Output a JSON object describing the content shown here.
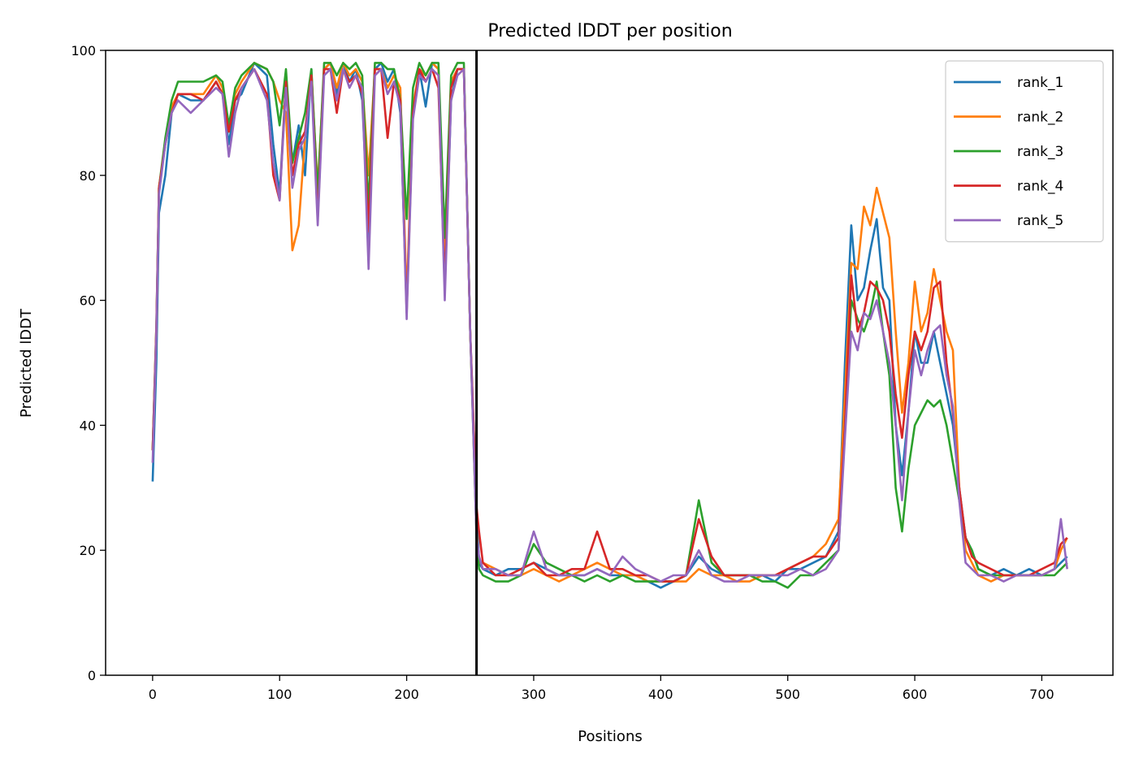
{
  "chart_data": {
    "type": "line",
    "title": "Predicted lDDT per position",
    "xlabel": "Positions",
    "ylabel": "Predicted lDDT",
    "xlim": [
      -37,
      756
    ],
    "ylim": [
      0,
      100
    ],
    "xticks": [
      0,
      100,
      200,
      300,
      400,
      500,
      600,
      700
    ],
    "yticks": [
      0,
      20,
      40,
      60,
      80,
      100
    ],
    "vline_x": 255,
    "legend_position": "top-right",
    "grid": false,
    "series": [
      {
        "name": "rank_1",
        "color": "#1f77b4",
        "x": [
          0,
          3,
          5,
          10,
          15,
          20,
          30,
          40,
          50,
          55,
          60,
          65,
          70,
          80,
          90,
          95,
          100,
          105,
          110,
          115,
          120,
          125,
          130,
          135,
          140,
          145,
          150,
          155,
          160,
          165,
          170,
          175,
          180,
          185,
          190,
          195,
          200,
          205,
          210,
          215,
          220,
          225,
          230,
          235,
          240,
          245,
          250,
          255,
          257,
          260,
          270,
          280,
          290,
          300,
          310,
          320,
          330,
          340,
          350,
          360,
          370,
          380,
          390,
          400,
          410,
          420,
          430,
          440,
          450,
          460,
          470,
          480,
          490,
          500,
          510,
          520,
          530,
          540,
          545,
          550,
          555,
          560,
          565,
          570,
          575,
          580,
          585,
          590,
          595,
          600,
          605,
          610,
          615,
          620,
          625,
          630,
          635,
          640,
          645,
          650,
          660,
          670,
          680,
          690,
          700,
          710,
          715,
          720
        ],
        "y": [
          31,
          50,
          74,
          80,
          90,
          93,
          92,
          92,
          95,
          93,
          85,
          92,
          93,
          98,
          96,
          85,
          77,
          95,
          82,
          88,
          80,
          97,
          75,
          97,
          98,
          93,
          98,
          95,
          97,
          92,
          70,
          97,
          98,
          95,
          97,
          90,
          59,
          90,
          97,
          91,
          98,
          97,
          62,
          92,
          97,
          97,
          55,
          27,
          18,
          17,
          16,
          17,
          17,
          18,
          17,
          16,
          16,
          16,
          17,
          16,
          16,
          16,
          15,
          14,
          15,
          16,
          19,
          17,
          16,
          16,
          16,
          16,
          15,
          17,
          17,
          18,
          19,
          23,
          50,
          72,
          60,
          62,
          68,
          73,
          62,
          60,
          40,
          32,
          42,
          55,
          50,
          50,
          55,
          50,
          45,
          40,
          30,
          22,
          20,
          17,
          16,
          17,
          16,
          17,
          16,
          17,
          18,
          19
        ]
      },
      {
        "name": "rank_2",
        "color": "#ff7f0e",
        "x": [
          0,
          3,
          5,
          10,
          15,
          20,
          30,
          40,
          50,
          55,
          60,
          65,
          70,
          80,
          90,
          95,
          100,
          105,
          110,
          115,
          120,
          125,
          130,
          135,
          140,
          145,
          150,
          155,
          160,
          165,
          170,
          175,
          180,
          185,
          190,
          195,
          200,
          205,
          210,
          215,
          220,
          225,
          230,
          235,
          240,
          245,
          250,
          255,
          257,
          260,
          270,
          280,
          290,
          300,
          310,
          320,
          330,
          340,
          350,
          360,
          370,
          380,
          390,
          400,
          410,
          420,
          430,
          440,
          450,
          460,
          470,
          480,
          490,
          500,
          510,
          520,
          530,
          540,
          545,
          550,
          555,
          560,
          565,
          570,
          575,
          580,
          585,
          590,
          595,
          600,
          605,
          610,
          615,
          620,
          625,
          630,
          635,
          640,
          645,
          650,
          660,
          670,
          680,
          690,
          700,
          710,
          715,
          720
        ],
        "y": [
          36,
          55,
          78,
          85,
          91,
          93,
          93,
          93,
          96,
          94,
          87,
          93,
          95,
          98,
          97,
          95,
          92,
          90,
          68,
          72,
          86,
          96,
          78,
          97,
          98,
          94,
          98,
          96,
          97,
          95,
          80,
          97,
          97,
          94,
          96,
          94,
          60,
          91,
          97,
          96,
          98,
          97,
          68,
          95,
          97,
          97,
          55,
          23,
          18,
          18,
          17,
          16,
          16,
          17,
          16,
          15,
          16,
          17,
          18,
          17,
          16,
          16,
          15,
          15,
          15,
          15,
          17,
          16,
          16,
          15,
          15,
          16,
          16,
          17,
          18,
          19,
          21,
          25,
          45,
          66,
          65,
          75,
          72,
          78,
          74,
          70,
          55,
          42,
          50,
          63,
          55,
          58,
          65,
          60,
          55,
          52,
          30,
          20,
          18,
          16,
          15,
          16,
          16,
          16,
          16,
          17,
          20,
          22
        ]
      },
      {
        "name": "rank_3",
        "color": "#2ca02c",
        "x": [
          0,
          3,
          5,
          10,
          15,
          20,
          30,
          40,
          50,
          55,
          60,
          65,
          70,
          80,
          90,
          95,
          100,
          105,
          110,
          115,
          120,
          125,
          130,
          135,
          140,
          145,
          150,
          155,
          160,
          165,
          170,
          175,
          180,
          185,
          190,
          195,
          200,
          205,
          210,
          215,
          220,
          225,
          230,
          235,
          240,
          245,
          250,
          255,
          257,
          260,
          270,
          280,
          290,
          300,
          310,
          320,
          330,
          340,
          350,
          360,
          370,
          380,
          390,
          400,
          410,
          420,
          430,
          440,
          450,
          460,
          470,
          480,
          490,
          500,
          510,
          520,
          530,
          540,
          545,
          550,
          555,
          560,
          565,
          570,
          575,
          580,
          585,
          590,
          595,
          600,
          605,
          610,
          615,
          620,
          625,
          630,
          635,
          640,
          645,
          650,
          660,
          670,
          680,
          690,
          700,
          710,
          715,
          720
        ],
        "y": [
          36,
          56,
          78,
          86,
          92,
          95,
          95,
          95,
          96,
          95,
          88,
          94,
          96,
          98,
          97,
          95,
          88,
          97,
          82,
          86,
          90,
          97,
          77,
          98,
          98,
          96,
          98,
          97,
          98,
          96,
          75,
          98,
          98,
          97,
          97,
          92,
          73,
          94,
          98,
          96,
          98,
          98,
          70,
          96,
          98,
          98,
          55,
          22,
          17,
          16,
          15,
          15,
          16,
          21,
          18,
          17,
          16,
          15,
          16,
          15,
          16,
          15,
          15,
          15,
          15,
          16,
          28,
          18,
          16,
          16,
          16,
          15,
          15,
          14,
          16,
          16,
          18,
          20,
          40,
          60,
          57,
          55,
          58,
          63,
          55,
          48,
          30,
          23,
          33,
          40,
          42,
          44,
          43,
          44,
          40,
          34,
          28,
          22,
          20,
          17,
          16,
          16,
          16,
          16,
          16,
          16,
          17,
          18
        ]
      },
      {
        "name": "rank_4",
        "color": "#d62728",
        "x": [
          0,
          3,
          5,
          10,
          15,
          20,
          30,
          40,
          50,
          55,
          60,
          65,
          70,
          80,
          90,
          95,
          100,
          105,
          110,
          115,
          120,
          125,
          130,
          135,
          140,
          145,
          150,
          155,
          160,
          165,
          170,
          175,
          180,
          185,
          190,
          195,
          200,
          205,
          210,
          215,
          220,
          225,
          230,
          235,
          240,
          245,
          250,
          255,
          257,
          260,
          270,
          280,
          290,
          300,
          310,
          320,
          330,
          340,
          350,
          360,
          370,
          380,
          390,
          400,
          410,
          420,
          430,
          440,
          450,
          460,
          470,
          480,
          490,
          500,
          510,
          520,
          530,
          540,
          545,
          550,
          555,
          560,
          565,
          570,
          575,
          580,
          585,
          590,
          595,
          600,
          605,
          610,
          615,
          620,
          625,
          630,
          635,
          640,
          645,
          650,
          660,
          670,
          680,
          690,
          700,
          710,
          715,
          720
        ],
        "y": [
          36,
          56,
          78,
          85,
          90,
          93,
          93,
          92,
          95,
          93,
          87,
          92,
          94,
          97,
          93,
          80,
          76,
          95,
          80,
          85,
          87,
          96,
          73,
          97,
          97,
          90,
          97,
          95,
          96,
          93,
          71,
          97,
          97,
          86,
          95,
          92,
          58,
          90,
          97,
          95,
          97,
          94,
          62,
          94,
          97,
          97,
          55,
          27,
          23,
          18,
          16,
          16,
          17,
          18,
          16,
          16,
          17,
          17,
          23,
          17,
          17,
          16,
          16,
          15,
          15,
          16,
          25,
          19,
          16,
          16,
          16,
          16,
          16,
          17,
          18,
          19,
          19,
          22,
          40,
          64,
          55,
          58,
          63,
          62,
          60,
          55,
          45,
          38,
          48,
          55,
          52,
          55,
          62,
          63,
          50,
          42,
          30,
          22,
          19,
          18,
          17,
          16,
          16,
          16,
          17,
          18,
          21,
          22
        ]
      },
      {
        "name": "rank_5",
        "color": "#9467bd",
        "x": [
          0,
          3,
          5,
          10,
          15,
          20,
          30,
          40,
          50,
          55,
          60,
          65,
          70,
          80,
          90,
          95,
          100,
          105,
          110,
          115,
          120,
          125,
          130,
          135,
          140,
          145,
          150,
          155,
          160,
          165,
          170,
          175,
          180,
          185,
          190,
          195,
          200,
          205,
          210,
          215,
          220,
          225,
          230,
          235,
          240,
          245,
          250,
          255,
          257,
          260,
          270,
          280,
          290,
          300,
          310,
          320,
          330,
          340,
          350,
          360,
          370,
          380,
          390,
          400,
          410,
          420,
          430,
          440,
          450,
          460,
          470,
          480,
          490,
          500,
          510,
          520,
          530,
          540,
          545,
          550,
          555,
          560,
          565,
          570,
          575,
          580,
          585,
          590,
          595,
          600,
          605,
          610,
          615,
          620,
          625,
          630,
          635,
          640,
          645,
          650,
          660,
          670,
          680,
          690,
          700,
          710,
          715,
          720
        ],
        "y": [
          34,
          55,
          77,
          85,
          90,
          92,
          90,
          92,
          94,
          93,
          83,
          90,
          94,
          97,
          92,
          82,
          76,
          94,
          78,
          84,
          86,
          95,
          72,
          96,
          97,
          92,
          97,
          94,
          96,
          94,
          65,
          96,
          97,
          93,
          95,
          91,
          57,
          89,
          96,
          95,
          97,
          96,
          60,
          92,
          96,
          97,
          55,
          22,
          19,
          17,
          17,
          16,
          16,
          23,
          17,
          16,
          16,
          16,
          17,
          16,
          19,
          17,
          16,
          15,
          16,
          16,
          20,
          16,
          15,
          15,
          16,
          16,
          16,
          16,
          17,
          16,
          17,
          20,
          38,
          55,
          52,
          58,
          57,
          60,
          55,
          50,
          40,
          28,
          42,
          52,
          48,
          52,
          55,
          56,
          48,
          43,
          28,
          18,
          17,
          16,
          16,
          15,
          16,
          16,
          16,
          17,
          25,
          17
        ]
      }
    ]
  }
}
